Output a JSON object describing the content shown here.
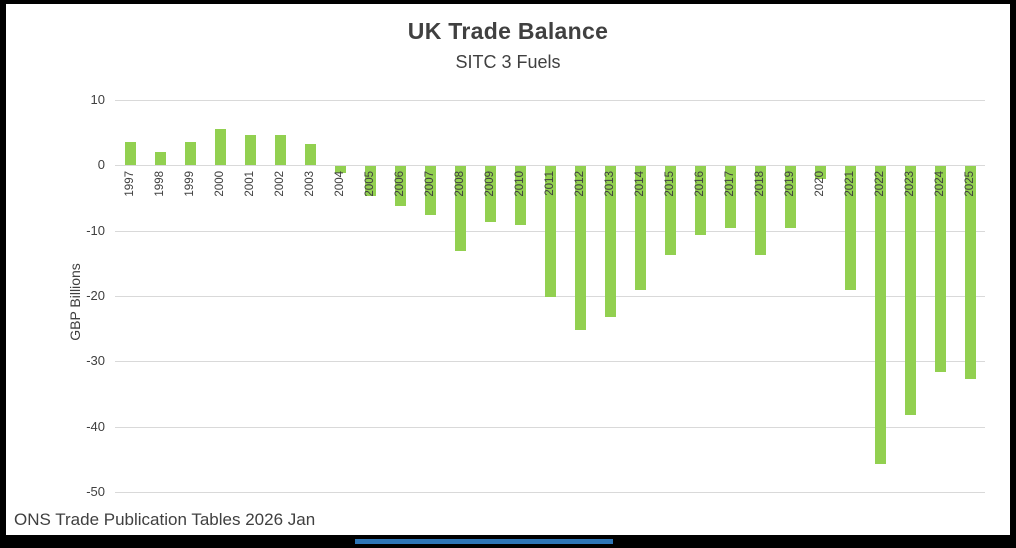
{
  "chart_data": {
    "type": "bar",
    "title": "UK Trade Balance",
    "subtitle": "SITC 3 Fuels",
    "ylabel": "GBP Billions",
    "xlabel": "",
    "ylim": [
      -50,
      10
    ],
    "yticks": [
      10,
      0,
      -10,
      -20,
      -30,
      -40,
      -50
    ],
    "grid": true,
    "legend": "none",
    "categories": [
      "1997",
      "1998",
      "1999",
      "2000",
      "2001",
      "2002",
      "2003",
      "2004",
      "2005",
      "2006",
      "2007",
      "2008",
      "2009",
      "2010",
      "2011",
      "2012",
      "2013",
      "2014",
      "2015",
      "2016",
      "2017",
      "2018",
      "2019",
      "2020",
      "2021",
      "2022",
      "2023",
      "2024",
      "2025"
    ],
    "values": [
      3.5,
      2.0,
      3.5,
      5.5,
      4.6,
      4.6,
      3.3,
      -1.0,
      -4.5,
      -6.0,
      -7.5,
      -13.0,
      -8.5,
      -9.0,
      -20.0,
      -25.0,
      -23.0,
      -19.0,
      -13.5,
      -10.5,
      -9.5,
      -13.5,
      -9.5,
      -2.0,
      -19.0,
      -45.5,
      -38.0,
      -31.5,
      -32.5
    ]
  },
  "footer": {
    "source": "ONS Trade Publication Tables 2026 Jan"
  },
  "colors": {
    "bar": "#92d050",
    "text": "#404040",
    "gridline": "#d9d9d9",
    "bottom_accent": "#2e75b6"
  }
}
